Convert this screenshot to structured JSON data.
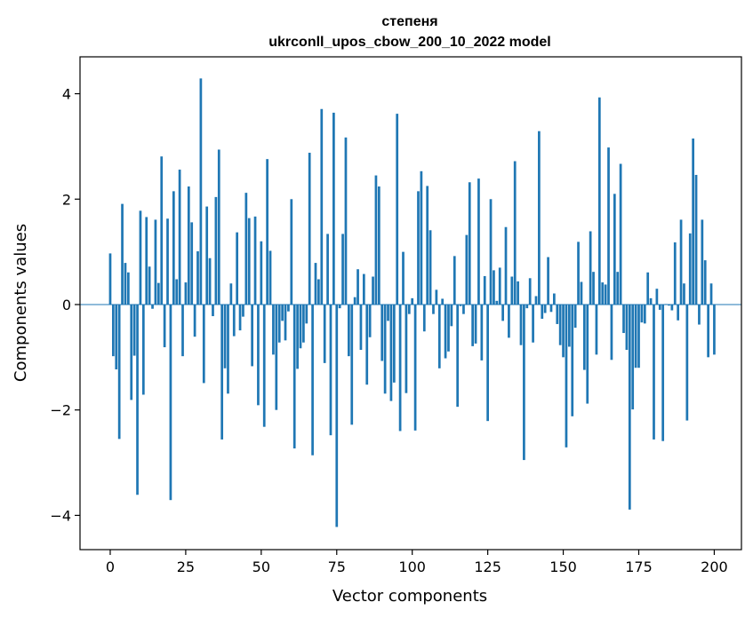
{
  "chart_data": {
    "type": "bar",
    "title_line1": "степеня",
    "title_line2": "ukrconll_upos_cbow_200_10_2022 model",
    "xlabel": "Vector components",
    "ylabel": "Components values",
    "xlim": [
      -10,
      209
    ],
    "ylim": [
      -4.65,
      4.7
    ],
    "xticks": [
      0,
      25,
      50,
      75,
      100,
      125,
      150,
      175,
      200
    ],
    "yticks": [
      -4,
      -2,
      0,
      2,
      4
    ],
    "xtick_labels": [
      "0",
      "25",
      "50",
      "75",
      "100",
      "125",
      "150",
      "175",
      "200"
    ],
    "ytick_labels": [
      "−4",
      "−2",
      "0",
      "2",
      "4"
    ],
    "bar_color": "#1f77b4",
    "grid": false,
    "values": [
      0.97,
      -0.98,
      -1.23,
      -2.55,
      1.91,
      0.79,
      0.61,
      -1.81,
      -0.97,
      -3.61,
      1.78,
      -1.71,
      1.66,
      0.72,
      -0.08,
      1.61,
      0.41,
      2.81,
      -0.81,
      1.63,
      -3.71,
      2.15,
      0.48,
      2.56,
      -0.98,
      0.42,
      2.24,
      1.56,
      -0.61,
      1.01,
      4.29,
      -1.49,
      1.86,
      0.88,
      -0.22,
      2.04,
      2.94,
      -2.56,
      -1.21,
      -1.69,
      0.4,
      -0.6,
      1.37,
      -0.49,
      -0.23,
      2.12,
      1.64,
      -1.17,
      1.67,
      -1.91,
      1.2,
      -2.32,
      2.76,
      1.02,
      -0.95,
      -2.0,
      -0.72,
      -0.31,
      -0.68,
      -0.13,
      2.0,
      -2.73,
      -1.22,
      -0.83,
      -0.72,
      -0.36,
      2.88,
      -2.86,
      0.79,
      0.48,
      3.71,
      -1.11,
      1.34,
      -2.48,
      3.64,
      -4.22,
      -0.07,
      1.34,
      3.17,
      -0.98,
      -2.28,
      0.14,
      0.67,
      -0.86,
      0.58,
      -1.52,
      -0.62,
      0.53,
      2.45,
      2.24,
      -1.07,
      -1.69,
      -0.31,
      -1.83,
      -1.48,
      3.62,
      -2.4,
      1.0,
      -1.68,
      -0.18,
      0.12,
      -2.39,
      2.15,
      2.53,
      -0.51,
      2.25,
      1.41,
      -0.18,
      0.28,
      -1.21,
      0.11,
      -1.02,
      -0.89,
      -0.41,
      0.92,
      -1.94,
      -0.03,
      -0.18,
      1.32,
      2.32,
      -0.79,
      -0.74,
      2.39,
      -1.06,
      0.54,
      -2.21,
      2.0,
      0.65,
      0.07,
      0.7,
      -0.31,
      1.47,
      -0.63,
      0.53,
      2.72,
      0.44,
      -0.77,
      -2.95,
      -0.07,
      0.5,
      -0.72,
      0.16,
      3.29,
      -0.27,
      -0.16,
      0.9,
      -0.14,
      0.21,
      -0.37,
      -0.77,
      -1.0,
      -2.71,
      -0.8,
      -2.12,
      -0.44,
      1.19,
      0.43,
      -1.24,
      -1.88,
      1.39,
      0.62,
      -0.95,
      3.93,
      0.42,
      0.38,
      2.98,
      -1.05,
      2.1,
      0.62,
      2.67,
      -0.54,
      -0.86,
      -3.89,
      -1.99,
      -1.2,
      -1.2,
      -0.34,
      -0.36,
      0.61,
      0.12,
      -2.56,
      0.3,
      -0.1,
      -2.59,
      0.01,
      -0.02,
      -0.11,
      1.18,
      -0.3,
      1.61,
      0.4,
      -2.2,
      1.35,
      3.15,
      2.46,
      -0.38,
      1.61,
      0.84,
      -1.0,
      0.4,
      -0.95
    ]
  }
}
